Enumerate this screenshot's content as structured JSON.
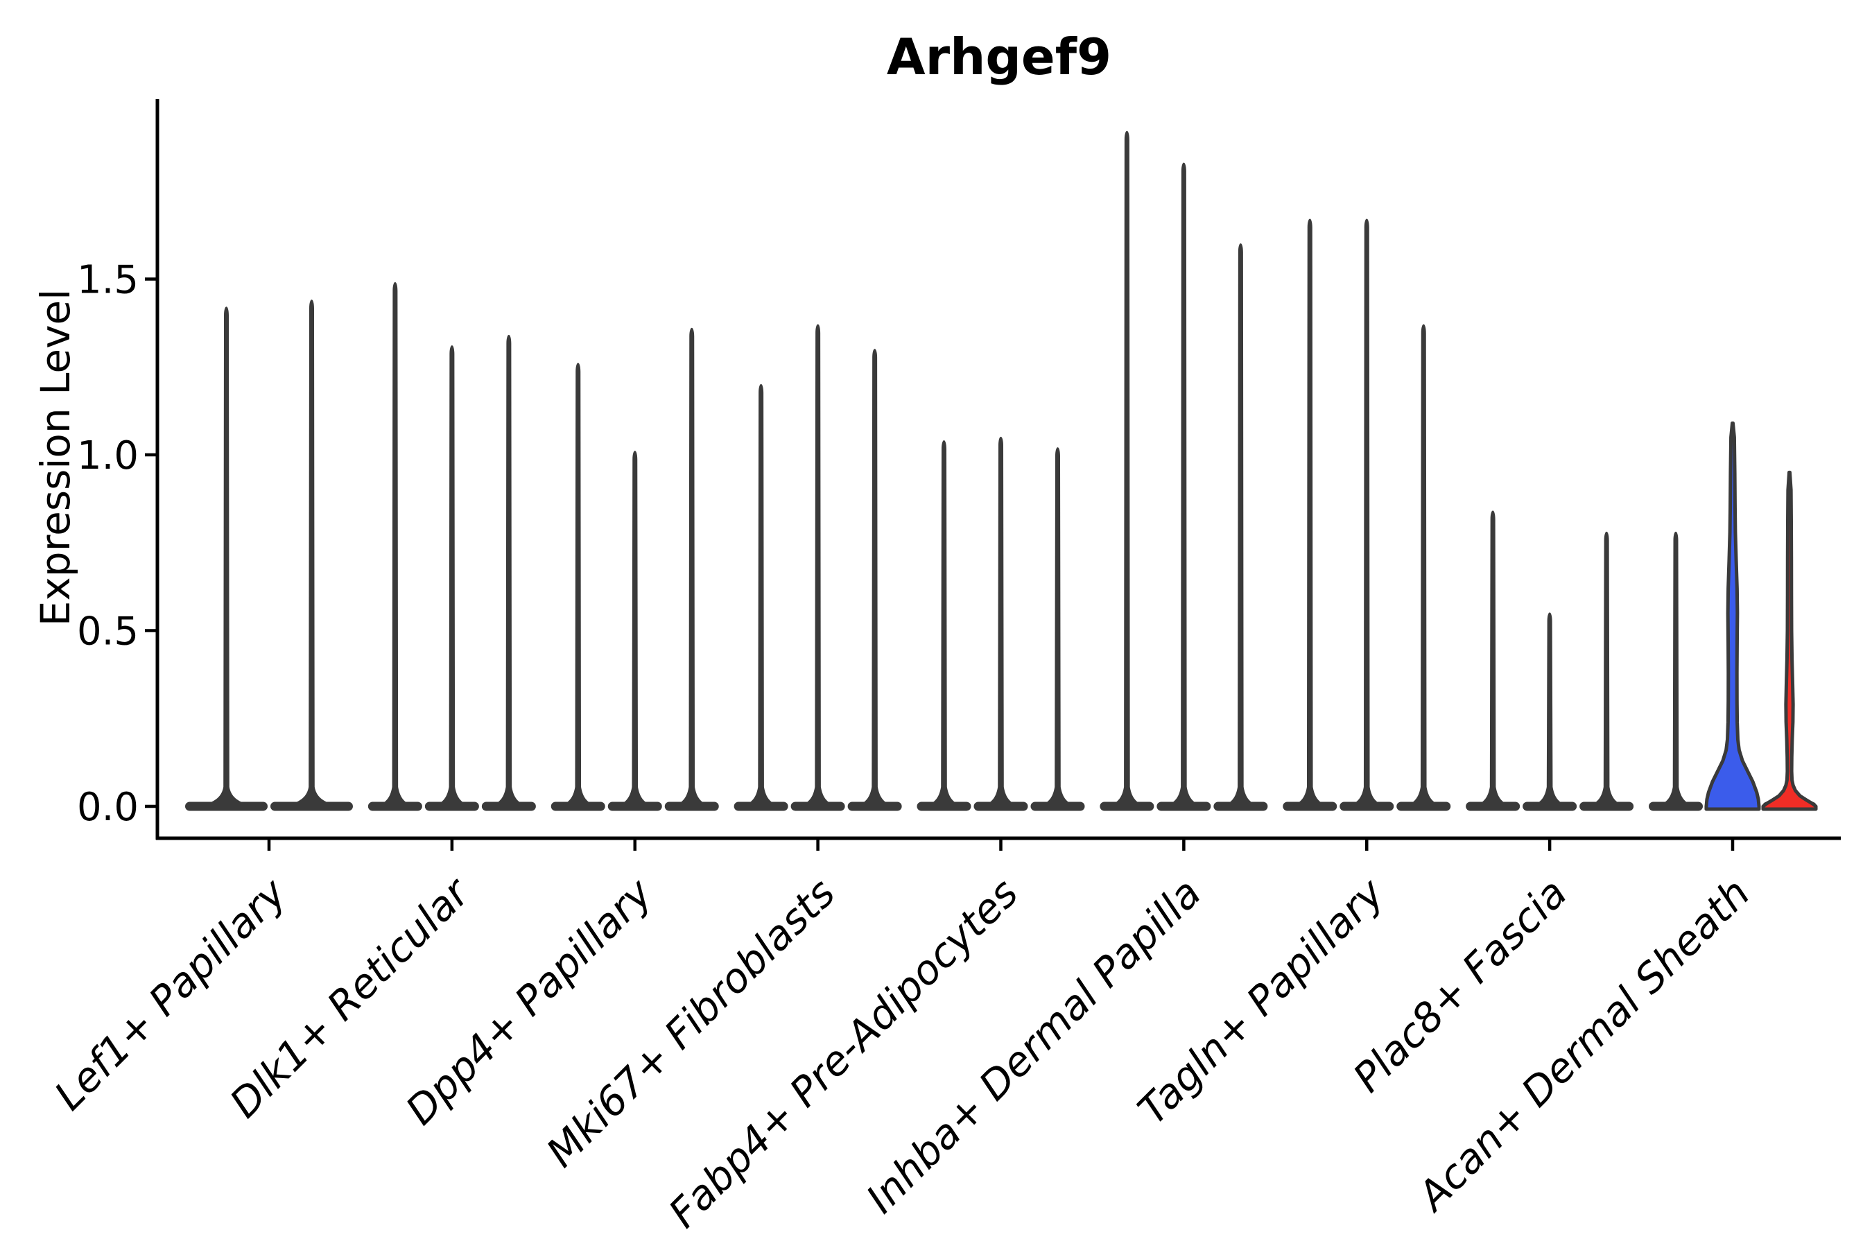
{
  "title": "Arhgef9",
  "axes": {
    "ylabel": "Expression Level",
    "ytick_labels": [
      "0.0",
      "0.5",
      "1.0",
      "1.5"
    ]
  },
  "chart_data": {
    "type": "violin",
    "title": "Arhgef9",
    "xlabel": "",
    "ylabel": "Expression Level",
    "ylim": [
      -0.09,
      2.01
    ],
    "yticks": [
      0.0,
      0.5,
      1.0,
      1.5
    ],
    "grid": "off",
    "legend_position": "none",
    "categories": [
      "Lef1+ Papillary",
      "Dlk1+ Reticular",
      "Dpp4+ Papillary",
      "Mki67+ Fibroblasts",
      "Fabp4+ Pre-Adipocytes",
      "Inhba+ Dermal Papilla",
      "Tagln+ Papillary",
      "Plac8+ Fascia",
      "Acan+ Dermal Sheath"
    ],
    "colors": {
      "dark": "#3a3a3a",
      "blue": "#3b5ceb",
      "red": "#f02d26",
      "axis": "#000000"
    },
    "groups": [
      {
        "category": "Lef1+ Papillary",
        "violins": [
          {
            "max": 1.42,
            "style": "spike",
            "color": "dark"
          },
          {
            "max": 1.44,
            "style": "spike",
            "color": "dark"
          }
        ]
      },
      {
        "category": "Dlk1+ Reticular",
        "violins": [
          {
            "max": 1.49,
            "style": "spike",
            "color": "dark"
          },
          {
            "max": 1.31,
            "style": "spike",
            "color": "dark"
          },
          {
            "max": 1.34,
            "style": "spike",
            "color": "dark"
          }
        ]
      },
      {
        "category": "Dpp4+ Papillary",
        "violins": [
          {
            "max": 1.26,
            "style": "spike",
            "color": "dark"
          },
          {
            "max": 1.01,
            "style": "spike",
            "color": "dark"
          },
          {
            "max": 1.36,
            "style": "spike",
            "color": "dark"
          }
        ]
      },
      {
        "category": "Mki67+ Fibroblasts",
        "violins": [
          {
            "max": 1.2,
            "style": "spike",
            "color": "dark"
          },
          {
            "max": 1.37,
            "style": "spike",
            "color": "dark"
          },
          {
            "max": 1.3,
            "style": "spike",
            "color": "dark"
          }
        ]
      },
      {
        "category": "Fabp4+ Pre-Adipocytes",
        "violins": [
          {
            "max": 1.04,
            "style": "spike",
            "color": "dark"
          },
          {
            "max": 1.05,
            "style": "spike",
            "color": "dark"
          },
          {
            "max": 1.02,
            "style": "spike",
            "color": "dark"
          }
        ]
      },
      {
        "category": "Inhba+ Dermal Papilla",
        "violins": [
          {
            "max": 1.92,
            "style": "spike",
            "color": "dark"
          },
          {
            "max": 1.83,
            "style": "spike",
            "color": "dark"
          },
          {
            "max": 1.6,
            "style": "spike",
            "color": "dark"
          }
        ]
      },
      {
        "category": "Tagln+ Papillary",
        "violins": [
          {
            "max": 1.67,
            "style": "spike",
            "color": "dark"
          },
          {
            "max": 1.67,
            "style": "spike",
            "color": "dark"
          },
          {
            "max": 1.37,
            "style": "spike",
            "color": "dark"
          }
        ]
      },
      {
        "category": "Plac8+ Fascia",
        "violins": [
          {
            "max": 0.84,
            "style": "spike",
            "color": "dark"
          },
          {
            "max": 0.55,
            "style": "spike",
            "color": "dark"
          },
          {
            "max": 0.78,
            "style": "spike",
            "color": "dark"
          }
        ]
      },
      {
        "category": "Acan+ Dermal Sheath",
        "violins": [
          {
            "max": 0.78,
            "style": "spike",
            "color": "dark"
          },
          {
            "max": 1.09,
            "style": "body",
            "color": "blue",
            "profile": "blue"
          },
          {
            "max": 0.95,
            "style": "body",
            "color": "red",
            "profile": "red"
          }
        ]
      }
    ],
    "profiles": {
      "blue": [
        [
          1.09,
          0.012
        ],
        [
          1.05,
          0.063
        ],
        [
          0.95,
          0.08
        ],
        [
          0.85,
          0.09
        ],
        [
          0.78,
          0.102
        ],
        [
          0.7,
          0.132
        ],
        [
          0.62,
          0.166
        ],
        [
          0.55,
          0.178
        ],
        [
          0.47,
          0.168
        ],
        [
          0.38,
          0.161
        ],
        [
          0.3,
          0.163
        ],
        [
          0.24,
          0.171
        ],
        [
          0.19,
          0.195
        ],
        [
          0.16,
          0.244
        ],
        [
          0.13,
          0.366
        ],
        [
          0.1,
          0.561
        ],
        [
          0.07,
          0.756
        ],
        [
          0.04,
          0.902
        ],
        [
          0.02,
          0.963
        ],
        [
          0.0,
          0.988
        ]
      ],
      "red": [
        [
          0.95,
          0.012
        ],
        [
          0.9,
          0.056
        ],
        [
          0.8,
          0.066
        ],
        [
          0.7,
          0.071
        ],
        [
          0.6,
          0.073
        ],
        [
          0.5,
          0.078
        ],
        [
          0.42,
          0.093
        ],
        [
          0.35,
          0.117
        ],
        [
          0.29,
          0.134
        ],
        [
          0.24,
          0.127
        ],
        [
          0.19,
          0.102
        ],
        [
          0.14,
          0.085
        ],
        [
          0.1,
          0.08
        ],
        [
          0.075,
          0.093
        ],
        [
          0.06,
          0.134
        ],
        [
          0.045,
          0.22
        ],
        [
          0.03,
          0.39
        ],
        [
          0.018,
          0.634
        ],
        [
          0.008,
          0.854
        ],
        [
          0.0,
          0.988
        ]
      ]
    }
  }
}
